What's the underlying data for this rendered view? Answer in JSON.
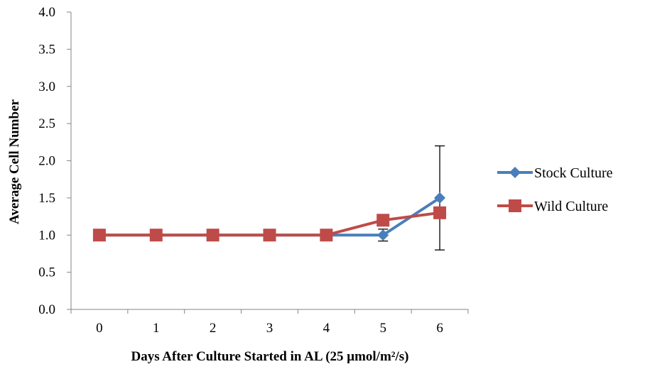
{
  "chart_data": {
    "type": "line",
    "categories": [
      "0",
      "1",
      "2",
      "3",
      "4",
      "5",
      "6"
    ],
    "xlabel": "Days After Culture Started in AL (25 μmol/m²/s)",
    "ylabel": "Average Cell Number",
    "ylim": [
      0,
      4
    ],
    "yticks": [
      "0.0",
      "0.5",
      "1.0",
      "1.5",
      "2.0",
      "2.5",
      "3.0",
      "3.5",
      "4.0"
    ],
    "grid": false,
    "legend_position": "right",
    "series": [
      {
        "name": "Stock Culture",
        "color": "#4a7ebb",
        "marker": "diamond",
        "values": [
          1.0,
          1.0,
          1.0,
          1.0,
          1.0,
          1.0,
          1.5
        ],
        "error": [
          0,
          0,
          0,
          0,
          0,
          0.08,
          0.7
        ]
      },
      {
        "name": "Wild Culture",
        "color": "#be4b48",
        "marker": "square",
        "values": [
          1.0,
          1.0,
          1.0,
          1.0,
          1.0,
          1.2,
          1.3
        ],
        "error": [
          0,
          0,
          0,
          0,
          0,
          0,
          0
        ]
      }
    ]
  }
}
